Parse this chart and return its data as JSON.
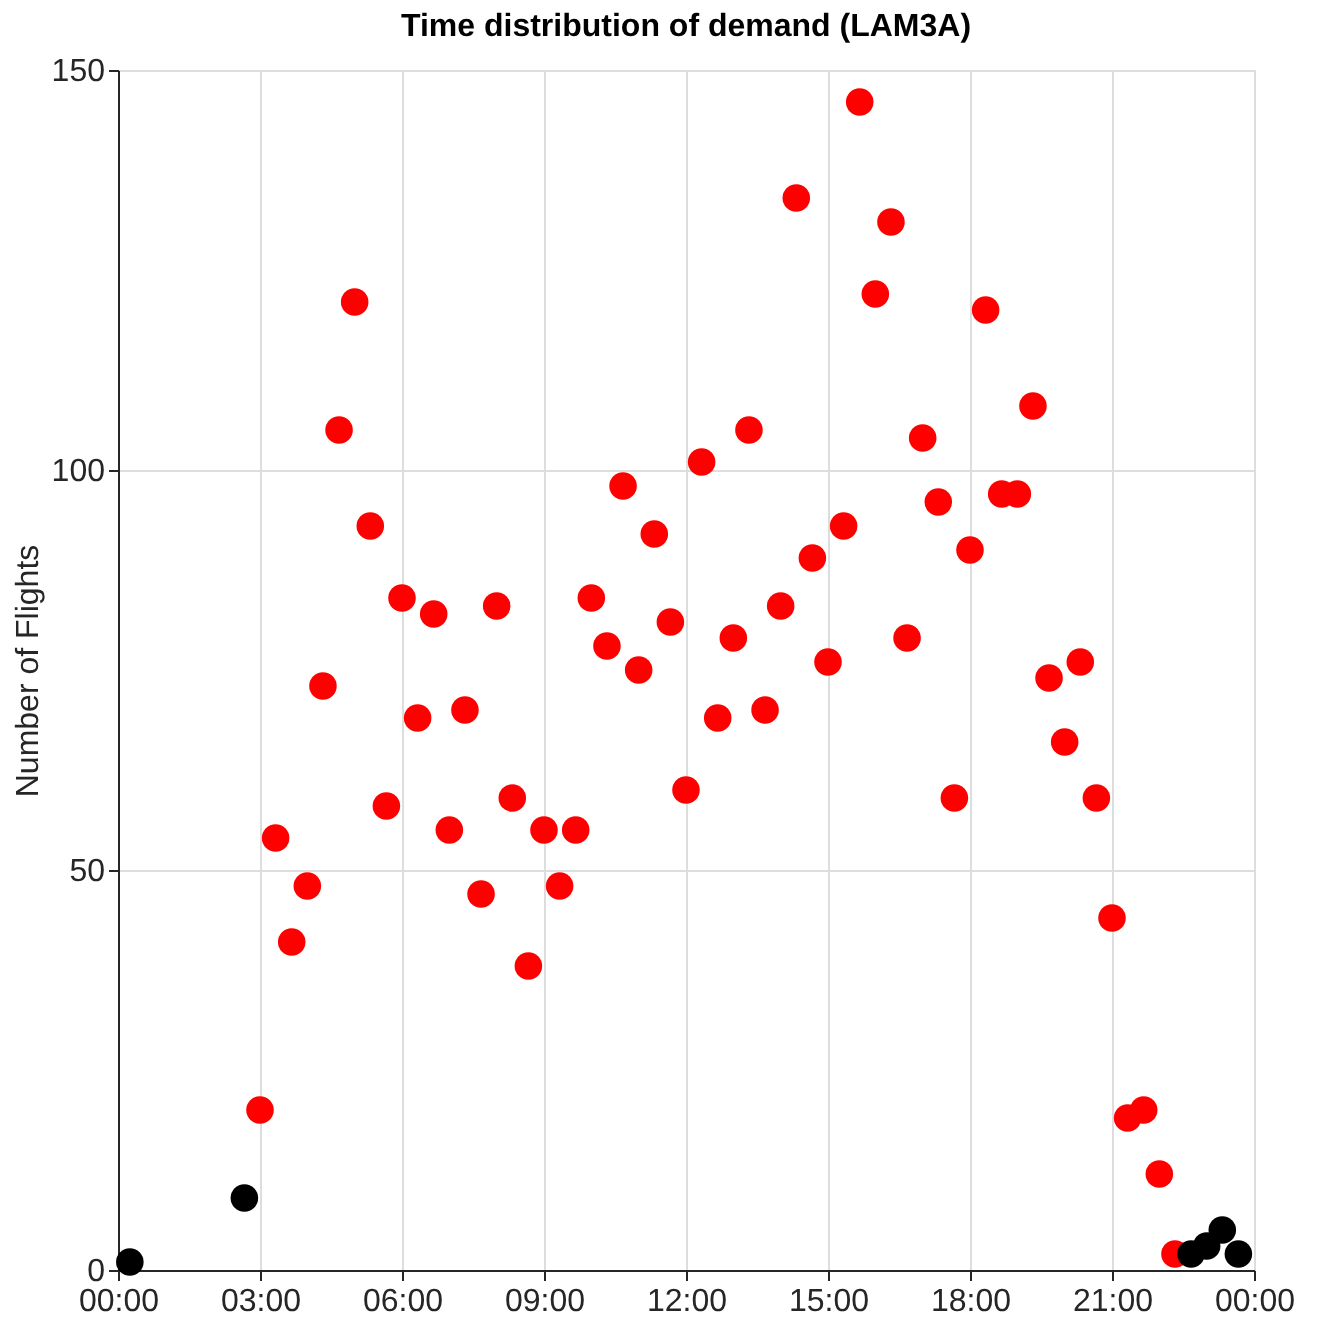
{
  "chart_data": {
    "type": "scatter",
    "title": "Time distribution of demand (LAM3A)",
    "ylabel": "Number of Flights",
    "xlim": [
      0,
      24
    ],
    "ylim": [
      0,
      150
    ],
    "xticks": [
      {
        "value": 0,
        "label": "00:00"
      },
      {
        "value": 3,
        "label": "03:00"
      },
      {
        "value": 6,
        "label": "06:00"
      },
      {
        "value": 9,
        "label": "09:00"
      },
      {
        "value": 12,
        "label": "12:00"
      },
      {
        "value": 15,
        "label": "15:00"
      },
      {
        "value": 18,
        "label": "18:00"
      },
      {
        "value": 21,
        "label": "21:00"
      },
      {
        "value": 24,
        "label": "00:00"
      }
    ],
    "yticks": [
      0,
      50,
      100,
      150
    ],
    "grid": true,
    "marker": "circle",
    "legend": false,
    "series": [
      {
        "color": "#ff0000",
        "x": [
          3.0,
          3.33,
          3.67,
          4.0,
          4.33,
          4.67,
          5.0,
          5.33,
          5.67,
          6.0,
          6.33,
          6.67,
          7.0,
          7.33,
          7.67,
          8.0,
          8.33,
          8.67,
          9.0,
          9.33,
          9.67,
          10.0,
          10.33,
          10.67,
          11.0,
          11.33,
          11.67,
          12.0,
          12.33,
          12.67,
          13.0,
          13.33,
          13.67,
          14.0,
          14.33,
          14.67,
          15.0,
          15.33,
          15.67,
          16.0,
          16.33,
          16.67,
          17.0,
          17.33,
          17.67,
          18.0,
          18.33,
          18.67,
          19.0,
          19.33,
          19.67,
          20.0,
          20.33,
          20.67,
          21.0,
          21.33,
          21.67,
          22.0,
          22.33
        ],
        "values": [
          20,
          54,
          41,
          48,
          73,
          105,
          121,
          93,
          58,
          84,
          69,
          82,
          55,
          70,
          47,
          83,
          59,
          38,
          55,
          48,
          55,
          84,
          78,
          98,
          75,
          92,
          81,
          60,
          101,
          69,
          79,
          105,
          70,
          83,
          134,
          89,
          76,
          93,
          146,
          122,
          131,
          79,
          104,
          96,
          59,
          90,
          120,
          97,
          97,
          108,
          74,
          66,
          76,
          59,
          44,
          19,
          20,
          12,
          2
        ]
      },
      {
        "color": "#000000",
        "x": [
          0.25,
          2.67,
          22.67,
          23.0,
          23.33,
          23.67
        ],
        "values": [
          1,
          9,
          2,
          3,
          5,
          2
        ]
      }
    ]
  }
}
